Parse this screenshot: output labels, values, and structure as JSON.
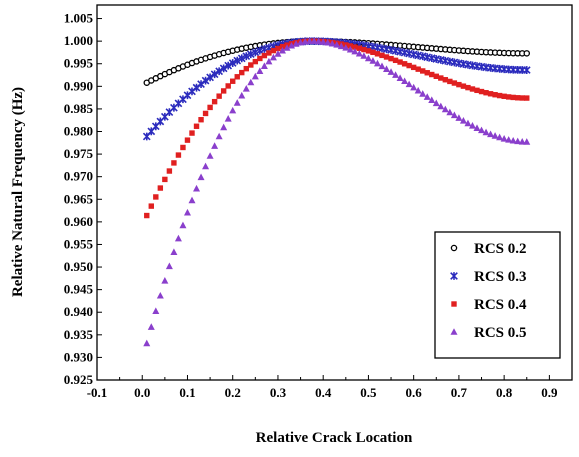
{
  "chart_data": {
    "type": "scatter",
    "title": "",
    "xlabel": "Relative Crack Location",
    "ylabel": "Relative Natural Frequency (Hz)",
    "xlim": [
      -0.1,
      0.95
    ],
    "ylim": [
      0.925,
      1.008
    ],
    "xticks": [
      "-0.1",
      "0.0",
      "0.1",
      "0.2",
      "0.3",
      "0.4",
      "0.5",
      "0.6",
      "0.7",
      "0.8",
      "0.9"
    ],
    "yticks": [
      "0.925",
      "0.930",
      "0.935",
      "0.940",
      "0.945",
      "0.950",
      "0.955",
      "0.960",
      "0.965",
      "0.970",
      "0.975",
      "0.980",
      "0.985",
      "0.990",
      "0.995",
      "1.000",
      "1.005"
    ],
    "grid": false,
    "legend_position": "lower-right",
    "series": [
      {
        "name": "RCS 0.2",
        "marker": "circle",
        "color": "#000000",
        "peak_x": 0.375,
        "left_end": [
          0.01,
          0.9908
        ],
        "right_end": [
          0.85,
          0.9973
        ]
      },
      {
        "name": "RCS 0.3",
        "marker": "star",
        "color": "#2b2bbd",
        "peak_x": 0.375,
        "left_end": [
          0.01,
          0.9789
        ],
        "right_end": [
          0.85,
          0.9936
        ]
      },
      {
        "name": "RCS 0.4",
        "marker": "square",
        "color": "#e02020",
        "peak_x": 0.375,
        "left_end": [
          0.01,
          0.9614
        ],
        "right_end": [
          0.85,
          0.9874
        ]
      },
      {
        "name": "RCS 0.5",
        "marker": "triangle",
        "color": "#8a3fcc",
        "peak_x": 0.375,
        "left_end": [
          0.01,
          0.9331
        ],
        "right_end": [
          0.85,
          0.9777
        ]
      }
    ]
  }
}
